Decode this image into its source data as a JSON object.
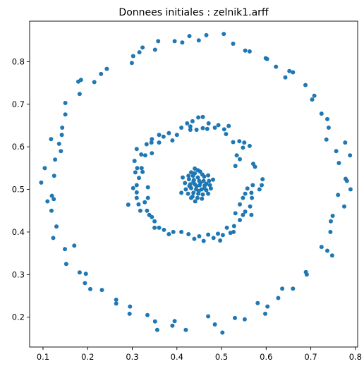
{
  "chart_data": {
    "type": "scatter",
    "title": "Donnees initiales : zelnik1.arff",
    "xlabel": "",
    "ylabel": "",
    "xlim": [
      0.07,
      0.805
    ],
    "ylim": [
      0.13,
      0.895
    ],
    "xticks": [
      0.1,
      0.2,
      0.3,
      0.4,
      0.5,
      0.6,
      0.7,
      0.8
    ],
    "xtick_labels": [
      "0.1",
      "0.2",
      "0.3",
      "0.4",
      "0.5",
      "0.6",
      "0.7",
      "0.8"
    ],
    "yticks": [
      0.2,
      0.3,
      0.4,
      0.5,
      0.6,
      0.7,
      0.8
    ],
    "ytick_labels": [
      "0.2",
      "0.3",
      "0.4",
      "0.5",
      "0.6",
      "0.7",
      "0.8"
    ],
    "grid": false,
    "marker_color": "#1f77b4",
    "series": [
      {
        "points": [
          [
            0.505,
            0.865
          ],
          [
            0.466,
            0.862
          ],
          [
            0.428,
            0.86
          ],
          [
            0.395,
            0.848
          ],
          [
            0.412,
            0.845
          ],
          [
            0.358,
            0.848
          ],
          [
            0.323,
            0.833
          ],
          [
            0.351,
            0.828
          ],
          [
            0.526,
            0.842
          ],
          [
            0.449,
            0.85
          ],
          [
            0.553,
            0.826
          ],
          [
            0.563,
            0.824
          ],
          [
            0.316,
            0.822
          ],
          [
            0.302,
            0.813
          ],
          [
            0.299,
            0.797
          ],
          [
            0.599,
            0.808
          ],
          [
            0.602,
            0.806
          ],
          [
            0.622,
            0.788
          ],
          [
            0.652,
            0.778
          ],
          [
            0.66,
            0.775
          ],
          [
            0.243,
            0.783
          ],
          [
            0.23,
            0.771
          ],
          [
            0.215,
            0.752
          ],
          [
            0.185,
            0.757
          ],
          [
            0.179,
            0.753
          ],
          [
            0.643,
            0.763
          ],
          [
            0.688,
            0.745
          ],
          [
            0.708,
            0.72
          ],
          [
            0.182,
            0.724
          ],
          [
            0.703,
            0.711
          ],
          [
            0.15,
            0.703
          ],
          [
            0.15,
            0.676
          ],
          [
            0.724,
            0.678
          ],
          [
            0.143,
            0.645
          ],
          [
            0.737,
            0.665
          ],
          [
            0.74,
            0.645
          ],
          [
            0.142,
            0.628
          ],
          [
            0.118,
            0.618
          ],
          [
            0.136,
            0.607
          ],
          [
            0.735,
            0.617
          ],
          [
            0.777,
            0.61
          ],
          [
            0.757,
            0.59
          ],
          [
            0.14,
            0.59
          ],
          [
            0.127,
            0.57
          ],
          [
            0.788,
            0.58
          ],
          [
            0.125,
            0.532
          ],
          [
            0.104,
            0.55
          ],
          [
            0.763,
            0.562
          ],
          [
            0.778,
            0.525
          ],
          [
            0.781,
            0.52
          ],
          [
            0.096,
            0.516
          ],
          [
            0.789,
            0.5
          ],
          [
            0.12,
            0.485
          ],
          [
            0.761,
            0.487
          ],
          [
            0.11,
            0.472
          ],
          [
            0.124,
            0.477
          ],
          [
            0.119,
            0.45
          ],
          [
            0.775,
            0.46
          ],
          [
            0.749,
            0.438
          ],
          [
            0.13,
            0.413
          ],
          [
            0.745,
            0.425
          ],
          [
            0.123,
            0.386
          ],
          [
            0.744,
            0.4
          ],
          [
            0.724,
            0.365
          ],
          [
            0.737,
            0.356
          ],
          [
            0.149,
            0.36
          ],
          [
            0.17,
            0.368
          ],
          [
            0.748,
            0.345
          ],
          [
            0.152,
            0.325
          ],
          [
            0.689,
            0.306
          ],
          [
            0.691,
            0.3
          ],
          [
            0.182,
            0.305
          ],
          [
            0.196,
            0.302
          ],
          [
            0.194,
            0.28
          ],
          [
            0.206,
            0.266
          ],
          [
            0.232,
            0.264
          ],
          [
            0.636,
            0.267
          ],
          [
            0.66,
            0.267
          ],
          [
            0.627,
            0.245
          ],
          [
            0.264,
            0.241
          ],
          [
            0.264,
            0.232
          ],
          [
            0.603,
            0.225
          ],
          [
            0.581,
            0.233
          ],
          [
            0.295,
            0.225
          ],
          [
            0.294,
            0.208
          ],
          [
            0.334,
            0.205
          ],
          [
            0.395,
            0.191
          ],
          [
            0.47,
            0.202
          ],
          [
            0.598,
            0.208
          ],
          [
            0.53,
            0.198
          ],
          [
            0.351,
            0.19
          ],
          [
            0.552,
            0.195
          ],
          [
            0.485,
            0.183
          ],
          [
            0.39,
            0.18
          ],
          [
            0.356,
            0.17
          ],
          [
            0.42,
            0.17
          ],
          [
            0.502,
            0.164
          ]
        ]
      },
      {
        "points": [
          [
            0.448,
            0.669
          ],
          [
            0.458,
            0.67
          ],
          [
            0.435,
            0.66
          ],
          [
            0.423,
            0.655
          ],
          [
            0.43,
            0.648
          ],
          [
            0.471,
            0.655
          ],
          [
            0.493,
            0.651
          ],
          [
            0.516,
            0.649
          ],
          [
            0.506,
            0.641
          ],
          [
            0.41,
            0.645
          ],
          [
            0.485,
            0.645
          ],
          [
            0.43,
            0.64
          ],
          [
            0.458,
            0.644
          ],
          [
            0.444,
            0.64
          ],
          [
            0.468,
            0.642
          ],
          [
            0.51,
            0.63
          ],
          [
            0.382,
            0.632
          ],
          [
            0.4,
            0.628
          ],
          [
            0.37,
            0.624
          ],
          [
            0.36,
            0.628
          ],
          [
            0.344,
            0.618
          ],
          [
            0.343,
            0.61
          ],
          [
            0.36,
            0.61
          ],
          [
            0.332,
            0.606
          ],
          [
            0.39,
            0.615
          ],
          [
            0.526,
            0.611
          ],
          [
            0.551,
            0.61
          ],
          [
            0.548,
            0.598
          ],
          [
            0.563,
            0.602
          ],
          [
            0.54,
            0.613
          ],
          [
            0.31,
            0.595
          ],
          [
            0.32,
            0.582
          ],
          [
            0.329,
            0.58
          ],
          [
            0.344,
            0.585
          ],
          [
            0.534,
            0.58
          ],
          [
            0.541,
            0.571
          ],
          [
            0.531,
            0.555
          ],
          [
            0.571,
            0.56
          ],
          [
            0.575,
            0.553
          ],
          [
            0.305,
            0.567
          ],
          [
            0.311,
            0.55
          ],
          [
            0.321,
            0.55
          ],
          [
            0.323,
            0.541
          ],
          [
            0.307,
            0.54
          ],
          [
            0.315,
            0.527
          ],
          [
            0.592,
            0.524
          ],
          [
            0.59,
            0.51
          ],
          [
            0.57,
            0.51
          ],
          [
            0.585,
            0.5
          ],
          [
            0.31,
            0.51
          ],
          [
            0.302,
            0.503
          ],
          [
            0.31,
            0.493
          ],
          [
            0.335,
            0.505
          ],
          [
            0.558,
            0.502
          ],
          [
            0.567,
            0.492
          ],
          [
            0.568,
            0.48
          ],
          [
            0.553,
            0.49
          ],
          [
            0.548,
            0.48
          ],
          [
            0.335,
            0.48
          ],
          [
            0.31,
            0.48
          ],
          [
            0.314,
            0.465
          ],
          [
            0.328,
            0.47
          ],
          [
            0.291,
            0.464
          ],
          [
            0.564,
            0.46
          ],
          [
            0.541,
            0.465
          ],
          [
            0.553,
            0.448
          ],
          [
            0.567,
            0.44
          ],
          [
            0.548,
            0.44
          ],
          [
            0.531,
            0.444
          ],
          [
            0.333,
            0.45
          ],
          [
            0.338,
            0.44
          ],
          [
            0.318,
            0.45
          ],
          [
            0.344,
            0.435
          ],
          [
            0.35,
            0.425
          ],
          [
            0.35,
            0.41
          ],
          [
            0.541,
            0.428
          ],
          [
            0.528,
            0.414
          ],
          [
            0.527,
            0.4
          ],
          [
            0.512,
            0.41
          ],
          [
            0.36,
            0.41
          ],
          [
            0.371,
            0.405
          ],
          [
            0.382,
            0.395
          ],
          [
            0.392,
            0.4
          ],
          [
            0.41,
            0.4
          ],
          [
            0.426,
            0.395
          ],
          [
            0.439,
            0.384
          ],
          [
            0.45,
            0.39
          ],
          [
            0.47,
            0.394
          ],
          [
            0.482,
            0.386
          ],
          [
            0.492,
            0.396
          ],
          [
            0.503,
            0.393
          ],
          [
            0.52,
            0.398
          ],
          [
            0.497,
            0.38
          ],
          [
            0.46,
            0.379
          ]
        ]
      },
      {
        "points": [
          [
            0.44,
            0.549
          ],
          [
            0.447,
            0.545
          ],
          [
            0.452,
            0.542
          ],
          [
            0.432,
            0.54
          ],
          [
            0.44,
            0.538
          ],
          [
            0.457,
            0.535
          ],
          [
            0.426,
            0.532
          ],
          [
            0.436,
            0.532
          ],
          [
            0.447,
            0.528
          ],
          [
            0.461,
            0.53
          ],
          [
            0.47,
            0.533
          ],
          [
            0.413,
            0.528
          ],
          [
            0.427,
            0.524
          ],
          [
            0.438,
            0.522
          ],
          [
            0.45,
            0.52
          ],
          [
            0.46,
            0.52
          ],
          [
            0.472,
            0.52
          ],
          [
            0.481,
            0.523
          ],
          [
            0.418,
            0.515
          ],
          [
            0.43,
            0.512
          ],
          [
            0.44,
            0.512
          ],
          [
            0.451,
            0.51
          ],
          [
            0.462,
            0.509
          ],
          [
            0.474,
            0.51
          ],
          [
            0.42,
            0.5
          ],
          [
            0.432,
            0.503
          ],
          [
            0.443,
            0.5
          ],
          [
            0.455,
            0.5
          ],
          [
            0.466,
            0.498
          ],
          [
            0.476,
            0.502
          ],
          [
            0.41,
            0.492
          ],
          [
            0.425,
            0.49
          ],
          [
            0.437,
            0.492
          ],
          [
            0.448,
            0.49
          ],
          [
            0.458,
            0.488
          ],
          [
            0.47,
            0.49
          ],
          [
            0.435,
            0.483
          ],
          [
            0.446,
            0.48
          ],
          [
            0.456,
            0.478
          ],
          [
            0.441,
            0.472
          ],
          [
            0.432,
            0.48
          ],
          [
            0.462,
            0.502
          ],
          [
            0.444,
            0.507
          ],
          [
            0.453,
            0.516
          ],
          [
            0.437,
            0.518
          ],
          [
            0.428,
            0.508
          ],
          [
            0.466,
            0.513
          ],
          [
            0.449,
            0.496
          ]
        ]
      }
    ]
  }
}
